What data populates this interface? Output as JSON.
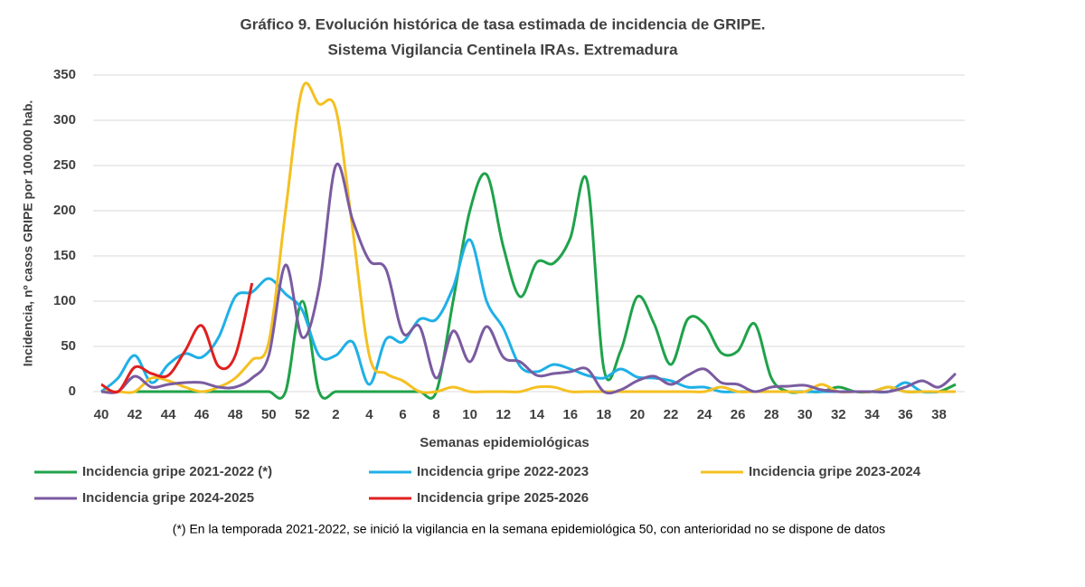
{
  "chart_data": {
    "type": "line",
    "title": "Gráfico 9. Evolución histórica de tasa estimada de  incidencia de GRIPE.",
    "subtitle": "Sistema Vigilancia Centinela IRAs. Extremadura",
    "x_label": "Semanas epidemiológicas",
    "y_label": "Incidencia, nº casos GRIPE  por 100.000 hab.",
    "footnote": "(*) En la temporada 2021-2022, se inició la vigilancia en la semana epidemiológica 50, con anterioridad no se dispone de datos",
    "categories": [
      "40",
      null,
      "42",
      null,
      "44",
      null,
      "46",
      null,
      "48",
      null,
      "50",
      null,
      "52",
      null,
      "2",
      null,
      "4",
      null,
      "6",
      null,
      "8",
      null,
      "10",
      null,
      "12",
      null,
      "14",
      null,
      "16",
      null,
      "18",
      null,
      "20",
      null,
      "22",
      null,
      "24",
      null,
      "26",
      null,
      "28",
      null,
      "30",
      null,
      "32",
      null,
      "34",
      null,
      "36",
      null,
      "38",
      null
    ],
    "ylim": [
      0,
      350
    ],
    "yticks": [
      0,
      50,
      100,
      150,
      200,
      250,
      300,
      350
    ],
    "grid": true,
    "series": [
      {
        "name": "Incidencia gripe 2021-2022 (*)",
        "color": "#1fa24a",
        "values": [
          null,
          null,
          0,
          0,
          0,
          0,
          0,
          0,
          0,
          0,
          0,
          0,
          100,
          0,
          0,
          0,
          0,
          0,
          0,
          0,
          0,
          100,
          200,
          240,
          160,
          105,
          143,
          142,
          170,
          233,
          25,
          45,
          105,
          75,
          30,
          80,
          75,
          43,
          45,
          75,
          15,
          0,
          0,
          0,
          5,
          0,
          0,
          5,
          0,
          0,
          0,
          8
        ]
      },
      {
        "name": "Incidencia gripe 2022-2023",
        "color": "#1fb0e6",
        "values": [
          0,
          15,
          40,
          10,
          30,
          42,
          38,
          60,
          105,
          110,
          125,
          108,
          90,
          40,
          40,
          55,
          8,
          58,
          55,
          80,
          80,
          115,
          168,
          100,
          70,
          28,
          22,
          30,
          25,
          18,
          15,
          25,
          16,
          15,
          12,
          5,
          5,
          0,
          0,
          0,
          0,
          0,
          0,
          0,
          0,
          0,
          0,
          0,
          10,
          0,
          0,
          0
        ]
      },
      {
        "name": "Incidencia gripe 2023-2024",
        "color": "#f5c022",
        "values": [
          0,
          0,
          0,
          15,
          12,
          5,
          0,
          5,
          15,
          35,
          55,
          200,
          335,
          318,
          312,
          180,
          40,
          20,
          12,
          0,
          0,
          5,
          0,
          0,
          0,
          0,
          5,
          5,
          0,
          0,
          0,
          0,
          0,
          0,
          0,
          0,
          0,
          5,
          0,
          0,
          0,
          0,
          0,
          8,
          0,
          0,
          0,
          5,
          0,
          0,
          0,
          0
        ]
      },
      {
        "name": "Incidencia gripe 2024-2025",
        "color": "#7a5ba0",
        "values": [
          0,
          0,
          17,
          5,
          8,
          10,
          10,
          5,
          5,
          15,
          40,
          140,
          60,
          115,
          250,
          190,
          145,
          135,
          65,
          72,
          15,
          67,
          33,
          72,
          38,
          33,
          18,
          20,
          22,
          25,
          0,
          2,
          12,
          17,
          8,
          18,
          25,
          10,
          8,
          0,
          5,
          6,
          7,
          2,
          0,
          0,
          0,
          0,
          5,
          12,
          5,
          20
        ]
      },
      {
        "name": "Incidencia gripe 2025-2026",
        "color": "#e02020",
        "values": [
          8,
          0,
          27,
          20,
          18,
          45,
          73,
          28,
          40,
          120,
          null,
          null,
          null,
          null,
          null,
          null,
          null,
          null,
          null,
          null,
          null,
          null,
          null,
          null,
          null,
          null,
          null,
          null,
          null,
          null,
          null,
          null,
          null,
          null,
          null,
          null,
          null,
          null,
          null,
          null,
          null,
          null,
          null,
          null,
          null,
          null,
          null,
          null,
          null,
          null,
          null,
          null
        ]
      }
    ]
  }
}
